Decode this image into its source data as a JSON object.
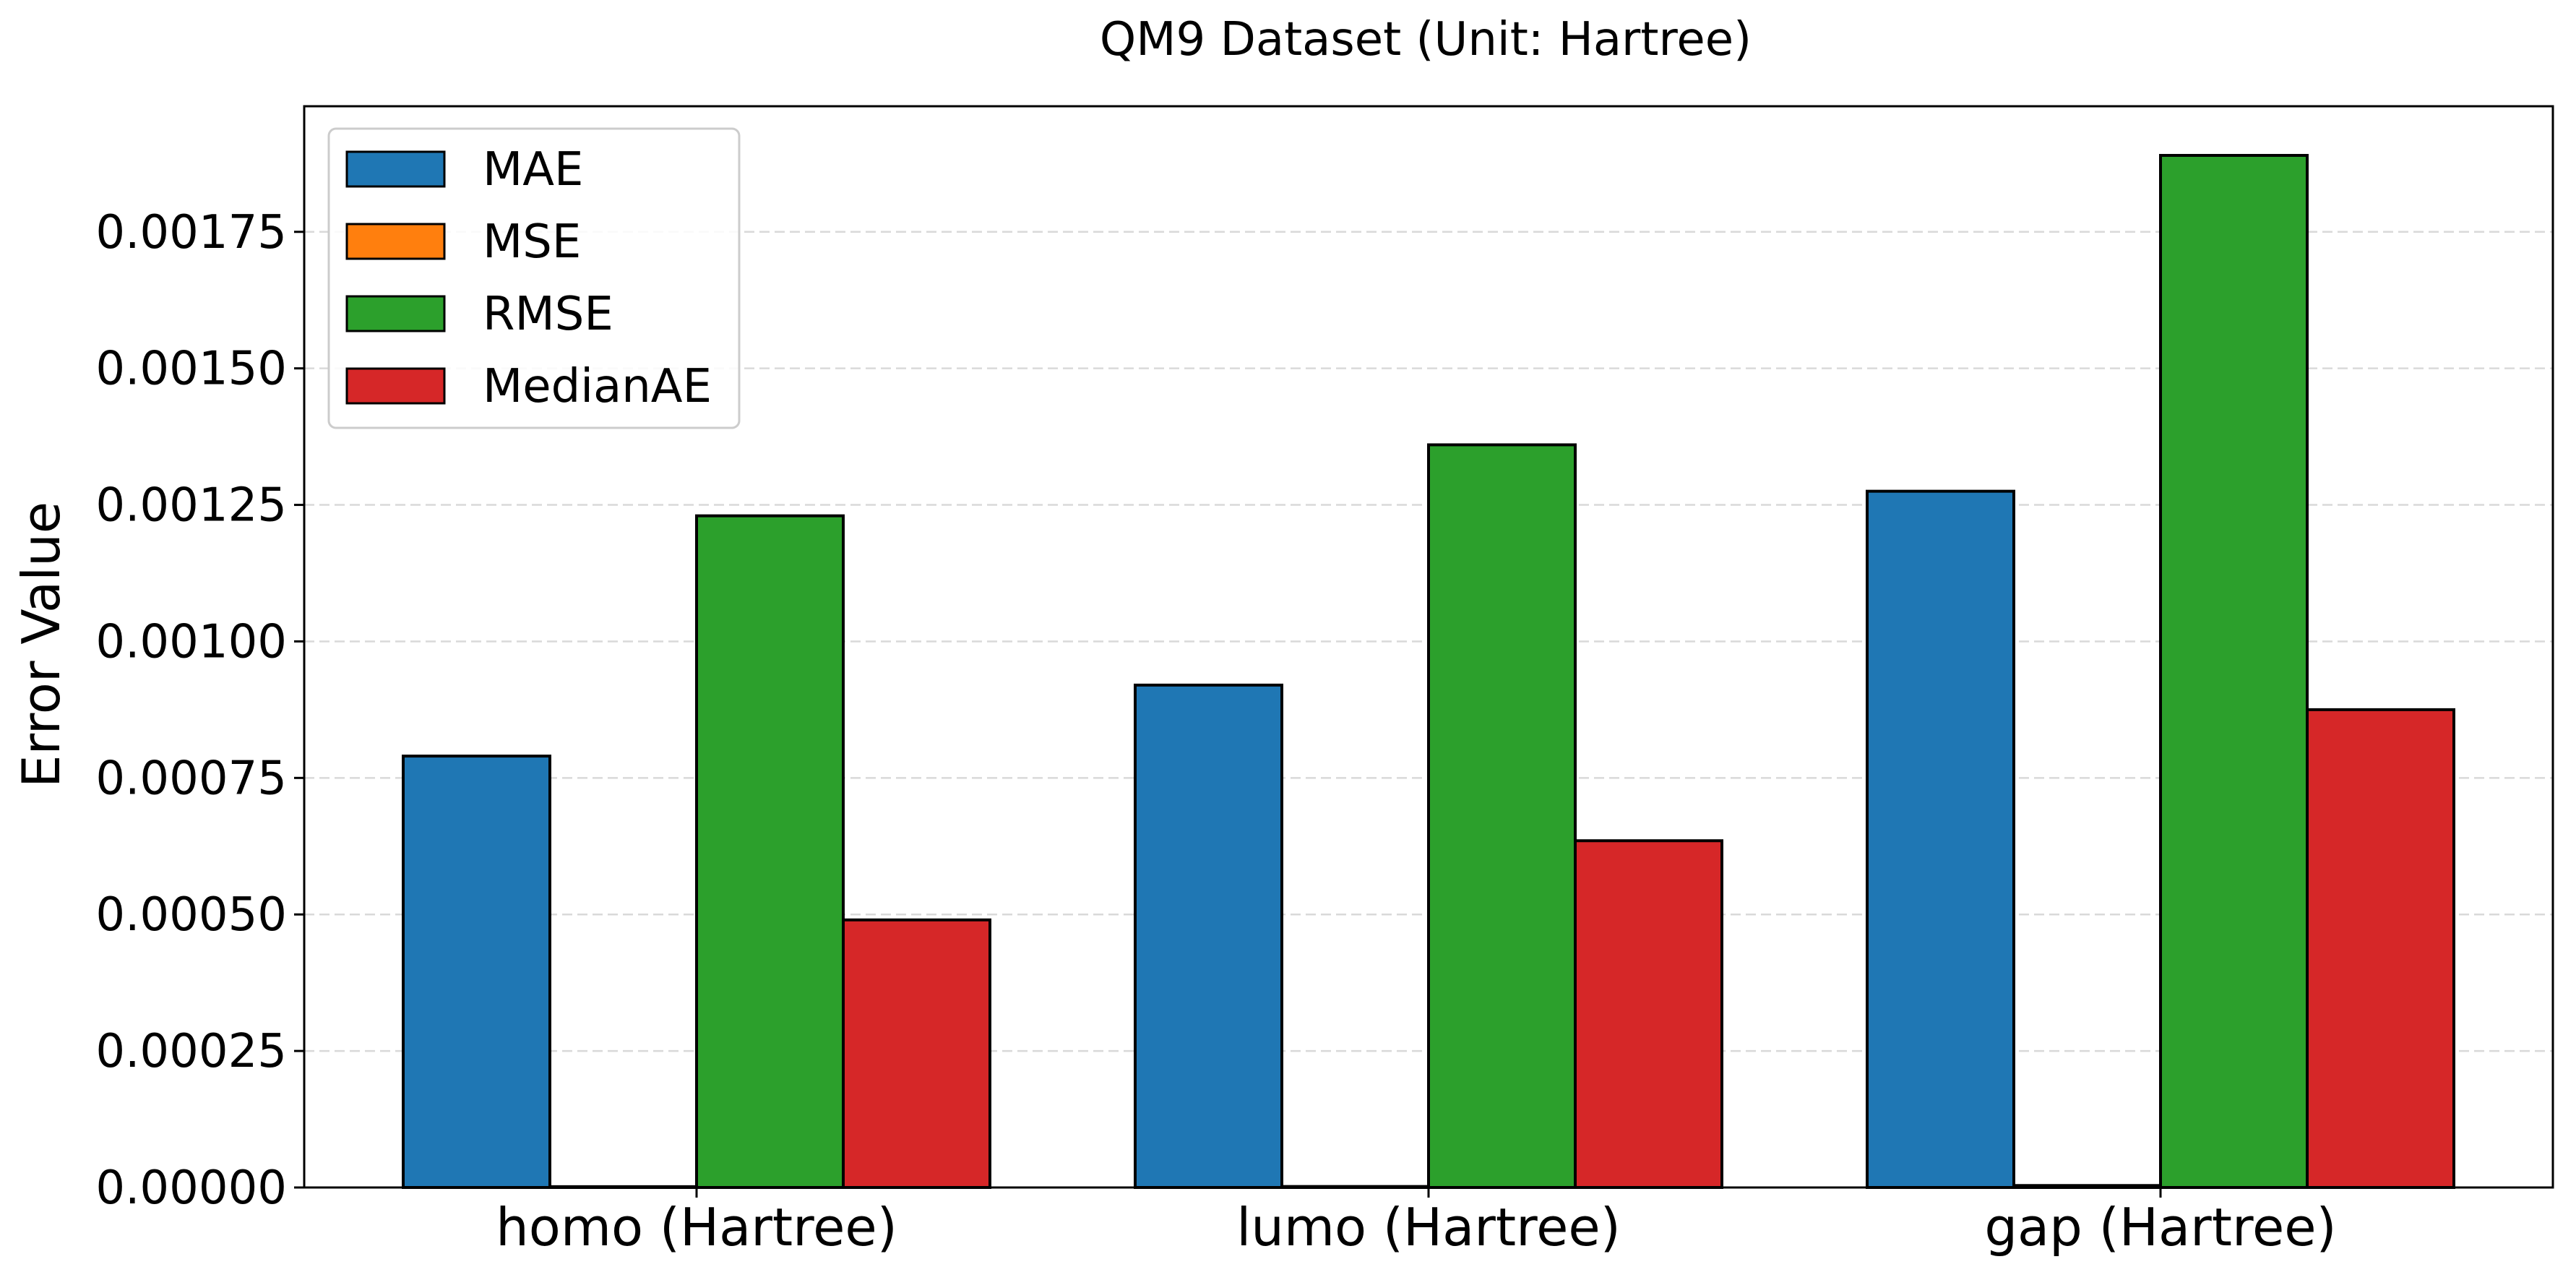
{
  "chart_data": {
    "type": "bar",
    "title": "QM9 Dataset (Unit: Hartree)",
    "xlabel": "",
    "ylabel": "Error Value",
    "categories": [
      "homo (Hartree)",
      "lumo (Hartree)",
      "gap (Hartree)"
    ],
    "series": [
      {
        "name": "MAE",
        "color": "#1f77b4",
        "values": [
          0.00079,
          0.00092,
          0.001275
        ]
      },
      {
        "name": "MSE",
        "color": "#ff7f0e",
        "values": [
          1.5e-06,
          1.8e-06,
          3.6e-06
        ]
      },
      {
        "name": "RMSE",
        "color": "#2ca02c",
        "values": [
          0.00123,
          0.00136,
          0.00189
        ]
      },
      {
        "name": "MedianAE",
        "color": "#d62728",
        "values": [
          0.00049,
          0.000635,
          0.000875
        ]
      }
    ],
    "ylim": [
      0,
      0.00198
    ],
    "yticks": [
      "0.00000",
      "0.00025",
      "0.00050",
      "0.00075",
      "0.00100",
      "0.00125",
      "0.00150",
      "0.00175"
    ],
    "grid": "y-dashed",
    "legend_position": "top-left"
  }
}
